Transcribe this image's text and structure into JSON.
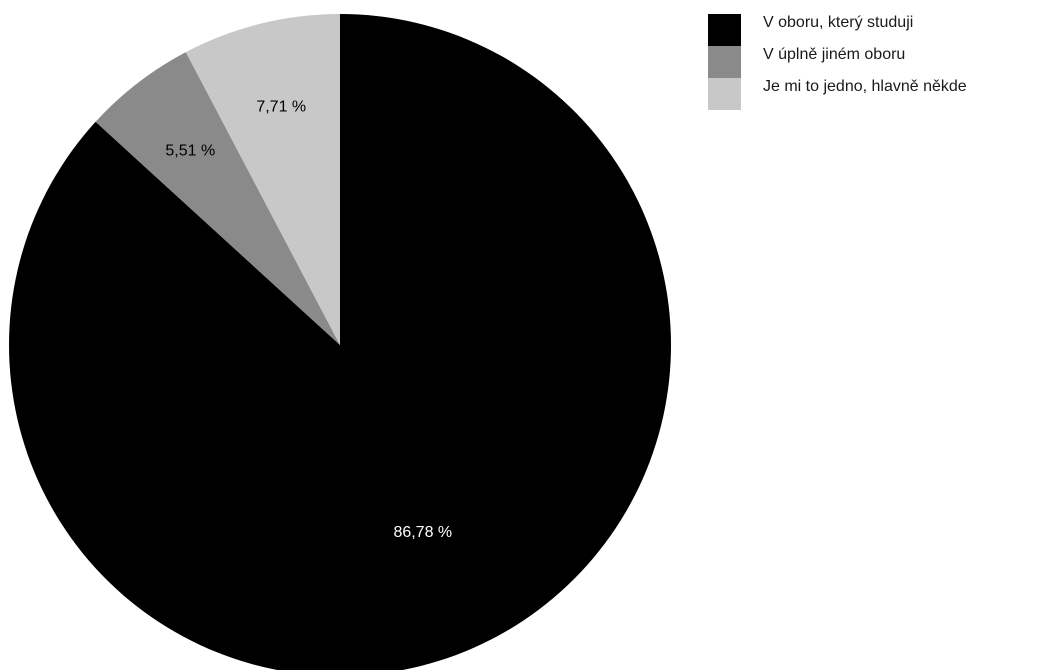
{
  "chart_data": {
    "type": "pie",
    "series": [
      {
        "name": "V oboru, který studuji",
        "value": 86.78,
        "label": "86,78 %",
        "color": "#000000",
        "label_color": "#ffffff"
      },
      {
        "name": "V úplně jiném oboru",
        "value": 5.51,
        "label": "5,51 %",
        "color": "#8a8a8a",
        "label_color": "#000000"
      },
      {
        "name": "Je mi to jedno, hlavně někde",
        "value": 7.71,
        "label": "7,71 %",
        "color": "#c8c8c8",
        "label_color": "#000000"
      }
    ],
    "start": "12 o'clock",
    "direction": "clockwise",
    "legend_position": "top-right"
  }
}
